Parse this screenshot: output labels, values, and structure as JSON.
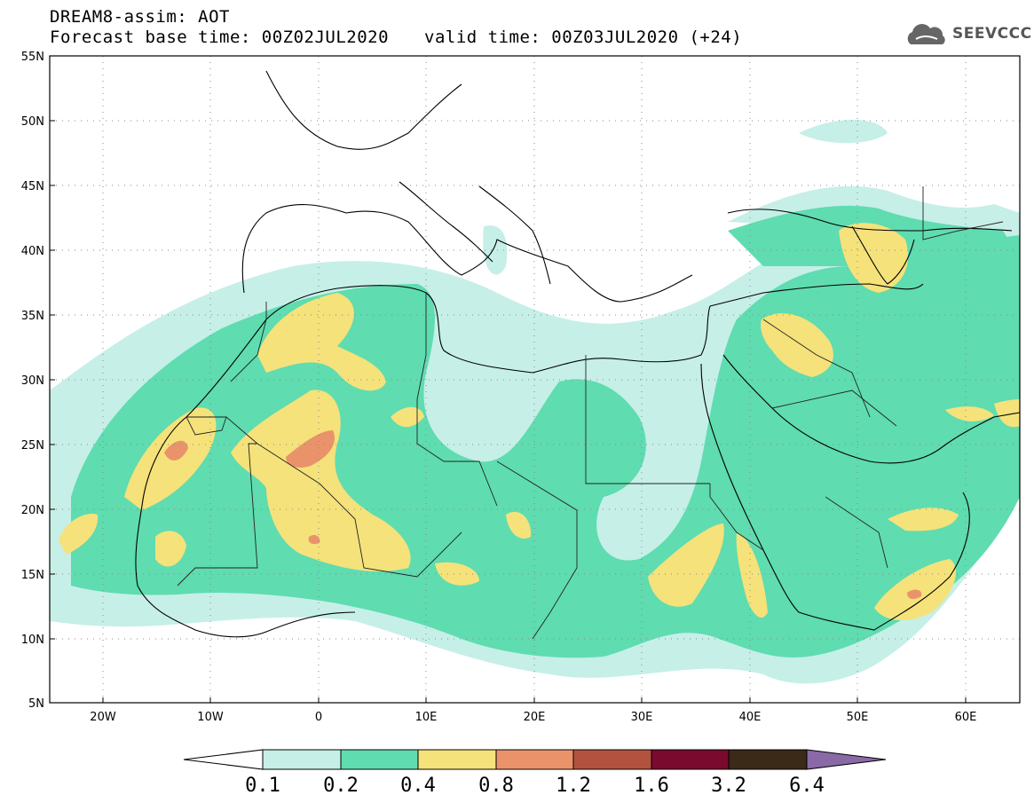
{
  "header": {
    "line1": "DREAM8-assim: AOT",
    "base_time": "Forecast base time: 00Z02JUL2020",
    "valid_time": "valid time: 00Z03JUL2020 (+24)"
  },
  "logo": {
    "text": "SEEVCCC",
    "icon": "cloud-icon"
  },
  "map": {
    "lon_range": [
      -25,
      65
    ],
    "lat_range": [
      5,
      55
    ],
    "lat_ticks": [
      "55N",
      "50N",
      "45N",
      "40N",
      "35N",
      "30N",
      "25N",
      "20N",
      "15N",
      "10N",
      "5N"
    ],
    "lon_ticks": [
      "20W",
      "10W",
      "0",
      "10E",
      "20E",
      "30E",
      "40E",
      "50E",
      "60E"
    ],
    "grid": "dotted"
  },
  "colorbar": {
    "levels": [
      "0.1",
      "0.2",
      "0.4",
      "0.8",
      "1.2",
      "1.6",
      "3.2",
      "6.4"
    ],
    "colors": [
      "#c6efe8",
      "#5fdcb0",
      "#f5e27a",
      "#ea936b",
      "#b3533f",
      "#7a0a2e",
      "#3a2a17",
      "#8a6aa6"
    ]
  }
}
